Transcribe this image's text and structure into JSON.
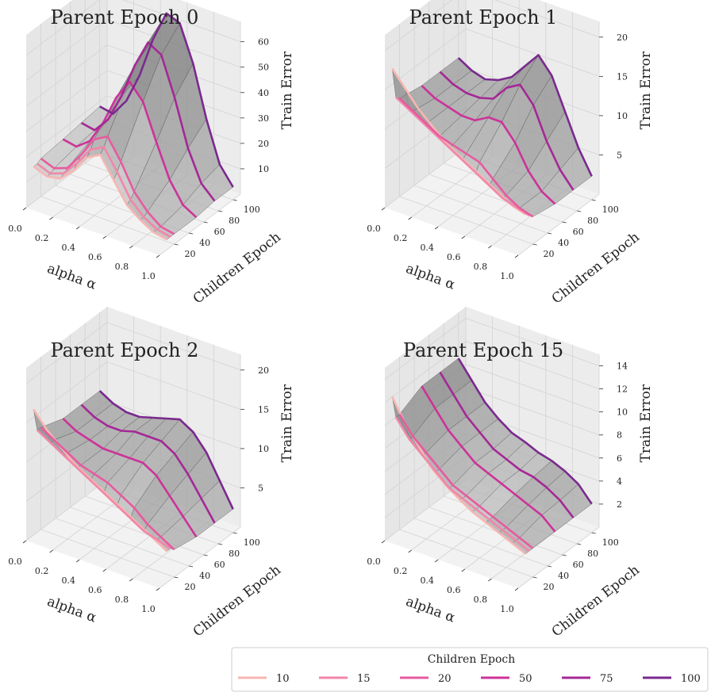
{
  "chart_data": [
    {
      "type": "surface",
      "title": "Parent Epoch 0",
      "xlabel": "alpha α",
      "ylabel": "Children Epoch",
      "zlabel": "Train Error",
      "alpha": [
        0.0,
        0.1,
        0.2,
        0.3,
        0.4,
        0.5,
        0.6,
        0.7,
        0.8,
        0.9,
        1.0
      ],
      "x_ticks": [
        "0.0",
        "0.2",
        "0.4",
        "0.6",
        "0.8",
        "1.0"
      ],
      "y_ticks": [
        "20",
        "40",
        "60",
        "80",
        "100"
      ],
      "z_ticks": [
        "10",
        "20",
        "30",
        "40",
        "50",
        "60"
      ],
      "zlim": [
        0,
        68
      ],
      "series": [
        {
          "children_epoch": 10,
          "values": [
            14,
            12,
            13,
            18,
            25,
            28,
            20,
            12,
            8,
            5,
            4
          ]
        },
        {
          "children_epoch": 15,
          "values": [
            14,
            12,
            14,
            20,
            27,
            30,
            22,
            13,
            8,
            5,
            4
          ]
        },
        {
          "children_epoch": 20,
          "values": [
            15,
            13,
            15,
            22,
            30,
            33,
            25,
            15,
            9,
            5,
            4
          ]
        },
        {
          "children_epoch": 50,
          "values": [
            16,
            15,
            19,
            28,
            40,
            48,
            42,
            28,
            15,
            7,
            4
          ]
        },
        {
          "children_epoch": 75,
          "values": [
            17,
            16,
            22,
            33,
            47,
            58,
            55,
            40,
            22,
            10,
            5
          ]
        },
        {
          "children_epoch": 100,
          "values": [
            18,
            17,
            24,
            36,
            52,
            64,
            62,
            48,
            28,
            12,
            5
          ]
        }
      ]
    },
    {
      "type": "surface",
      "title": "Parent Epoch 1",
      "xlabel": "alpha α",
      "ylabel": "Children Epoch",
      "zlabel": "Train Error",
      "alpha": [
        0.0,
        0.1,
        0.2,
        0.3,
        0.4,
        0.5,
        0.6,
        0.7,
        0.8,
        0.9,
        1.0
      ],
      "x_ticks": [
        "0.0",
        "0.2",
        "0.4",
        "0.6",
        "0.8",
        "1.0"
      ],
      "y_ticks": [
        "20",
        "40",
        "60",
        "80",
        "100"
      ],
      "z_ticks": [
        "5",
        "10",
        "15",
        "20"
      ],
      "zlim": [
        0,
        22
      ],
      "series": [
        {
          "children_epoch": 10,
          "values": [
            17,
            15,
            13,
            11.5,
            10,
            9,
            8,
            7,
            6,
            5,
            4.5
          ]
        },
        {
          "children_epoch": 15,
          "values": [
            13,
            12,
            11,
            10,
            9,
            8,
            7,
            6,
            5,
            4.5,
            4
          ]
        },
        {
          "children_epoch": 20,
          "values": [
            12.5,
            11.5,
            10.5,
            9.5,
            9,
            8.5,
            8,
            6.5,
            5,
            4,
            3.5
          ]
        },
        {
          "children_epoch": 50,
          "values": [
            12,
            11,
            10.5,
            10,
            10,
            11,
            11,
            9,
            6,
            4,
            3
          ]
        },
        {
          "children_epoch": 75,
          "values": [
            12,
            11,
            10.5,
            10.5,
            11,
            13,
            14,
            12,
            8,
            5,
            3
          ]
        },
        {
          "children_epoch": 100,
          "values": [
            12,
            11,
            10.5,
            11,
            12,
            14,
            16,
            14,
            10,
            6,
            3
          ]
        }
      ]
    },
    {
      "type": "surface",
      "title": "Parent Epoch 2",
      "xlabel": "alpha α",
      "ylabel": "Children Epoch",
      "zlabel": "Train Error",
      "alpha": [
        0.0,
        0.1,
        0.2,
        0.3,
        0.4,
        0.5,
        0.6,
        0.7,
        0.8,
        0.9,
        1.0
      ],
      "x_ticks": [
        "0.0",
        "0.2",
        "0.4",
        "0.6",
        "0.8",
        "1.0"
      ],
      "y_ticks": [
        "20",
        "40",
        "60",
        "80",
        "100"
      ],
      "z_ticks": [
        "5",
        "10",
        "15",
        "20"
      ],
      "zlim": [
        0,
        22
      ],
      "series": [
        {
          "children_epoch": 10,
          "values": [
            16,
            14,
            12.5,
            11,
            10,
            9,
            8,
            7,
            6,
            5,
            4
          ]
        },
        {
          "children_epoch": 15,
          "values": [
            13,
            12,
            11,
            10,
            9,
            8,
            7,
            6,
            5,
            4.5,
            4
          ]
        },
        {
          "children_epoch": 20,
          "values": [
            13,
            12,
            11,
            10,
            9.5,
            9,
            8,
            7,
            5.5,
            4.5,
            3.5
          ]
        },
        {
          "children_epoch": 50,
          "values": [
            12,
            11,
            10.5,
            10,
            10,
            10,
            10,
            9,
            7,
            5,
            3
          ]
        },
        {
          "children_epoch": 75,
          "values": [
            12,
            11,
            10.5,
            10.5,
            11,
            11,
            11,
            10,
            8,
            5.5,
            3
          ]
        },
        {
          "children_epoch": 100,
          "values": [
            12,
            11,
            10.5,
            10.5,
            11,
            11.5,
            12,
            11,
            9,
            6,
            3
          ]
        }
      ]
    },
    {
      "type": "surface",
      "title": "Parent Epoch 15",
      "xlabel": "alpha α",
      "ylabel": "Children Epoch",
      "zlabel": "Train Error",
      "alpha": [
        0.0,
        0.1,
        0.2,
        0.3,
        0.4,
        0.5,
        0.6,
        0.7,
        0.8,
        0.9,
        1.0
      ],
      "x_ticks": [
        "0.0",
        "0.2",
        "0.4",
        "0.6",
        "0.8",
        "1.0"
      ],
      "y_ticks": [
        "20",
        "40",
        "60",
        "80",
        "100"
      ],
      "z_ticks": [
        "2",
        "4",
        "6",
        "8",
        "10",
        "12",
        "14"
      ],
      "zlim": [
        0,
        15
      ],
      "series": [
        {
          "children_epoch": 10,
          "values": [
            12,
            10,
            8.5,
            7,
            6,
            5.2,
            4.5,
            4,
            3.5,
            3,
            2.5
          ]
        },
        {
          "children_epoch": 15,
          "values": [
            10,
            8.5,
            7.5,
            6.5,
            5.5,
            5,
            4.5,
            4,
            3.5,
            3,
            2.5
          ]
        },
        {
          "children_epoch": 20,
          "values": [
            10,
            8.5,
            7.5,
            6.5,
            5.5,
            5,
            4.5,
            4,
            3.5,
            3,
            2.5
          ]
        },
        {
          "children_epoch": 50,
          "values": [
            11,
            9.5,
            8,
            7,
            6,
            5.5,
            5,
            4.5,
            4,
            3.5,
            2.5
          ]
        },
        {
          "children_epoch": 75,
          "values": [
            11,
            9.5,
            8,
            7,
            6,
            5.5,
            5,
            4.8,
            4.3,
            3.6,
            2.5
          ]
        },
        {
          "children_epoch": 100,
          "values": [
            11,
            9.5,
            8,
            7,
            6.2,
            5.8,
            5.3,
            5,
            4.5,
            3.8,
            2.5
          ]
        }
      ]
    }
  ],
  "legend": {
    "title": "Children Epoch",
    "entries": [
      {
        "label": "10",
        "color": "#f7b6b2"
      },
      {
        "label": "15",
        "color": "#f286a8"
      },
      {
        "label": "20",
        "color": "#e75aa0"
      },
      {
        "label": "50",
        "color": "#cc3399"
      },
      {
        "label": "75",
        "color": "#a52896"
      },
      {
        "label": "100",
        "color": "#7a2a8e"
      }
    ]
  }
}
